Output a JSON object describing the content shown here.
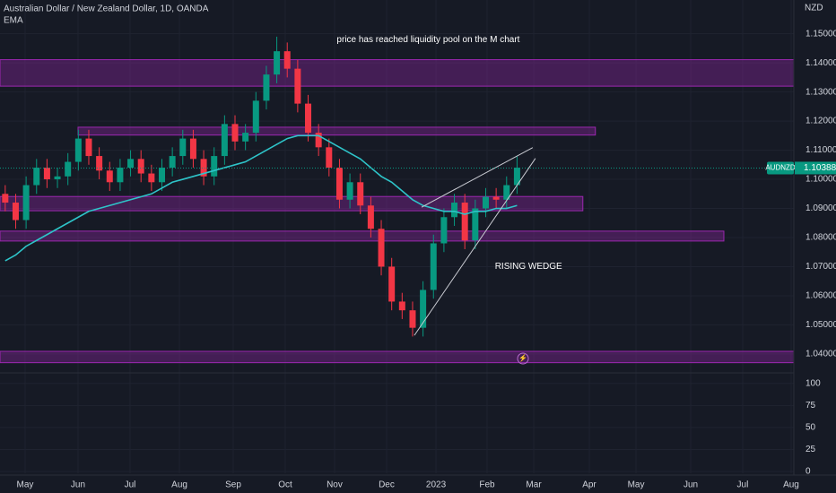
{
  "chart_data": {
    "type": "candlestick",
    "title": "Australian Dollar / New Zealand Dollar, 1D, OANDA",
    "indicator": "EMA",
    "currency": "NZD",
    "annotations": [
      {
        "text": "price has reached liquidity pool on the M chart",
        "x": 41.0,
        "y": 1.148
      },
      {
        "text": "RISING WEDGE",
        "x": 50.6,
        "y": 1.07
      }
    ],
    "symbol": "AUDNZD",
    "last_price": 1.10388,
    "open": [
      1.095,
      1.092,
      1.086,
      1.098,
      1.104,
      1.1,
      1.101,
      1.106,
      1.114,
      1.108,
      1.103,
      1.099,
      1.104,
      1.107,
      1.102,
      1.099,
      1.104,
      1.108,
      1.114,
      1.107,
      1.101,
      1.108,
      1.119,
      1.113,
      1.116,
      1.127,
      1.136,
      1.144,
      1.138,
      1.126,
      1.116,
      1.111,
      1.104,
      1.093,
      1.099,
      1.091,
      1.083,
      1.07,
      1.058,
      1.055,
      1.049,
      1.062,
      1.078,
      1.087,
      1.092,
      1.079,
      1.09,
      1.094,
      1.093,
      1.098
    ],
    "high": [
      1.098,
      1.095,
      1.101,
      1.107,
      1.107,
      1.104,
      1.109,
      1.117,
      1.117,
      1.111,
      1.106,
      1.107,
      1.11,
      1.11,
      1.105,
      1.107,
      1.111,
      1.117,
      1.117,
      1.11,
      1.111,
      1.122,
      1.122,
      1.119,
      1.13,
      1.139,
      1.149,
      1.147,
      1.141,
      1.129,
      1.119,
      1.114,
      1.107,
      1.102,
      1.102,
      1.094,
      1.086,
      1.073,
      1.061,
      1.058,
      1.065,
      1.081,
      1.09,
      1.095,
      1.095,
      1.093,
      1.097,
      1.097,
      1.101,
      1.108
    ],
    "low": [
      1.089,
      1.083,
      1.083,
      1.095,
      1.097,
      1.097,
      1.098,
      1.103,
      1.105,
      1.1,
      1.096,
      1.096,
      1.101,
      1.099,
      1.096,
      1.096,
      1.101,
      1.105,
      1.104,
      1.098,
      1.098,
      1.105,
      1.11,
      1.11,
      1.113,
      1.124,
      1.133,
      1.135,
      1.123,
      1.113,
      1.108,
      1.101,
      1.09,
      1.09,
      1.088,
      1.08,
      1.067,
      1.055,
      1.052,
      1.046,
      1.046,
      1.059,
      1.075,
      1.084,
      1.076,
      1.076,
      1.087,
      1.09,
      1.09,
      1.095
    ],
    "close": [
      1.092,
      1.086,
      1.098,
      1.104,
      1.1,
      1.101,
      1.106,
      1.114,
      1.108,
      1.103,
      1.099,
      1.104,
      1.107,
      1.102,
      1.099,
      1.104,
      1.108,
      1.114,
      1.107,
      1.101,
      1.108,
      1.119,
      1.113,
      1.116,
      1.127,
      1.136,
      1.144,
      1.138,
      1.126,
      1.116,
      1.111,
      1.104,
      1.093,
      1.099,
      1.091,
      1.083,
      1.07,
      1.058,
      1.055,
      1.049,
      1.062,
      1.078,
      1.087,
      1.092,
      1.079,
      1.09,
      1.094,
      1.093,
      1.098,
      1.104
    ],
    "ema": [
      1.072,
      1.074,
      1.077,
      1.079,
      1.081,
      1.083,
      1.085,
      1.087,
      1.089,
      1.09,
      1.091,
      1.092,
      1.093,
      1.094,
      1.095,
      1.097,
      1.099,
      1.1,
      1.101,
      1.102,
      1.103,
      1.104,
      1.105,
      1.106,
      1.108,
      1.11,
      1.112,
      1.114,
      1.115,
      1.115,
      1.115,
      1.113,
      1.111,
      1.109,
      1.107,
      1.104,
      1.101,
      1.099,
      1.096,
      1.093,
      1.091,
      1.09,
      1.089,
      1.089,
      1.088,
      1.089,
      1.089,
      1.09,
      1.09,
      1.091
    ],
    "up_color": "#089981",
    "down_color": "#f23645",
    "ema_color": "#2ec4c9",
    "zones": [
      {
        "low": 1.132,
        "high": 1.1411,
        "start": 0,
        "end": 76
      },
      {
        "low": 1.1152,
        "high": 1.1179,
        "start": 7.47,
        "end": 57.0
      },
      {
        "low": 1.0892,
        "high": 1.0941,
        "start": 0,
        "end": 55.8
      },
      {
        "low": 1.0788,
        "high": 1.0822,
        "start": 0,
        "end": 69.3
      },
      {
        "low": 1.037,
        "high": 1.0409,
        "start": 0,
        "end": 76
      }
    ],
    "zone_color": "#9c27b0",
    "trendlines": [
      {
        "x": [
          40.36,
          51.0
        ],
        "y": [
          1.0904,
          1.1109
        ]
      },
      {
        "x": [
          39.67,
          51.26
        ],
        "y": [
          1.0464,
          1.1072
        ]
      }
    ],
    "xlim": [
      0,
      76
    ],
    "xticks": [
      {
        "value": 2.4,
        "label": "May"
      },
      {
        "value": 7.47,
        "label": "Jun"
      },
      {
        "value": 12.45,
        "label": "Jul"
      },
      {
        "value": 17.18,
        "label": "Aug"
      },
      {
        "value": 22.33,
        "label": "Sep"
      },
      {
        "value": 27.31,
        "label": "Oct"
      },
      {
        "value": 32.03,
        "label": "Nov"
      },
      {
        "value": 37.01,
        "label": "Dec"
      },
      {
        "value": 41.74,
        "label": "2023"
      },
      {
        "value": 46.63,
        "label": "Feb"
      },
      {
        "value": 51.1,
        "label": "Mar"
      },
      {
        "value": 56.42,
        "label": "Apr"
      },
      {
        "value": 60.89,
        "label": "May"
      },
      {
        "value": 66.13,
        "label": "Jun"
      },
      {
        "value": 71.1,
        "label": "Jul"
      },
      {
        "value": 75.74,
        "label": "Aug"
      }
    ],
    "ylim": [
      1.0335,
      1.1616
    ],
    "yticks": [
      {
        "value": 1.04,
        "label": "1.04000"
      },
      {
        "value": 1.05,
        "label": "1.05000"
      },
      {
        "value": 1.06,
        "label": "1.06000"
      },
      {
        "value": 1.07,
        "label": "1.07000"
      },
      {
        "value": 1.08,
        "label": "1.08000"
      },
      {
        "value": 1.09,
        "label": "1.09000"
      },
      {
        "value": 1.1,
        "label": "1.10000"
      },
      {
        "value": 1.11,
        "label": "1.11000"
      },
      {
        "value": 1.12,
        "label": "1.12000"
      },
      {
        "value": 1.13,
        "label": "1.13000"
      },
      {
        "value": 1.14,
        "label": "1.14000"
      },
      {
        "value": 1.15,
        "label": "1.15000"
      }
    ],
    "y2lim": [
      -2,
      112
    ],
    "y2ticks": [
      0,
      25,
      50,
      75,
      100
    ],
    "grid": true
  }
}
